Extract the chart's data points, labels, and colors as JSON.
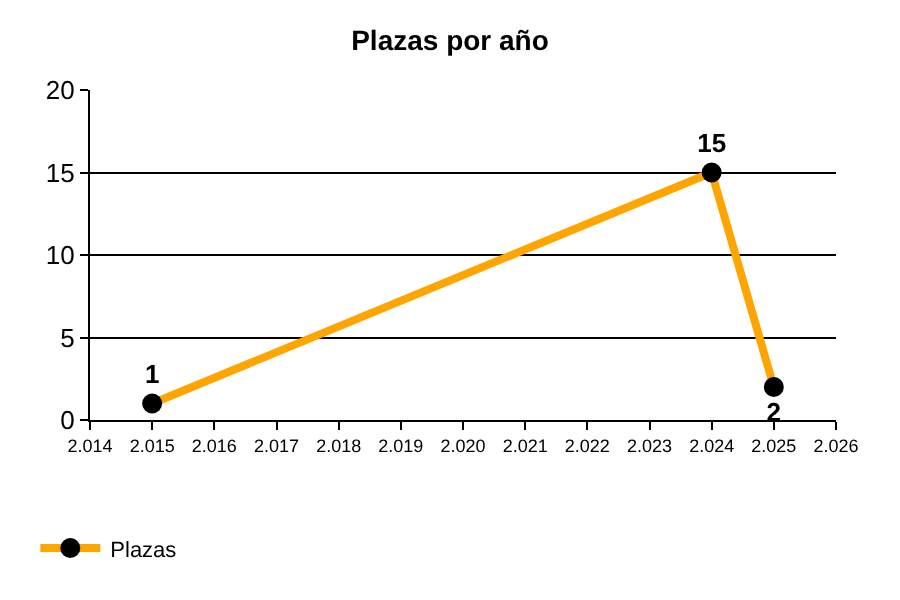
{
  "chart_data": {
    "type": "line",
    "title": "Plazas por año",
    "x": [
      2015,
      2024,
      2025
    ],
    "series": [
      {
        "name": "Plazas",
        "color": "#ffa500",
        "values": [
          1,
          15,
          2
        ]
      }
    ],
    "xlim": [
      2014,
      2026
    ],
    "xticks": [
      {
        "value": 2014,
        "label": "2.014"
      },
      {
        "value": 2015,
        "label": "2.015"
      },
      {
        "value": 2016,
        "label": "2.016"
      },
      {
        "value": 2017,
        "label": "2.017"
      },
      {
        "value": 2018,
        "label": "2.018"
      },
      {
        "value": 2019,
        "label": "2.019"
      },
      {
        "value": 2020,
        "label": "2.020"
      },
      {
        "value": 2021,
        "label": "2.021"
      },
      {
        "value": 2022,
        "label": "2.022"
      },
      {
        "value": 2023,
        "label": "2.023"
      },
      {
        "value": 2024,
        "label": "2.024"
      },
      {
        "value": 2025,
        "label": "2.025"
      },
      {
        "value": 2026,
        "label": "2.026"
      }
    ],
    "ylim": [
      0,
      20
    ],
    "yticks": [
      0,
      5,
      10,
      15,
      20
    ],
    "grid": "y",
    "legend": "bottom left",
    "marker": "circle",
    "line_style": "solid",
    "data_labels": true
  }
}
